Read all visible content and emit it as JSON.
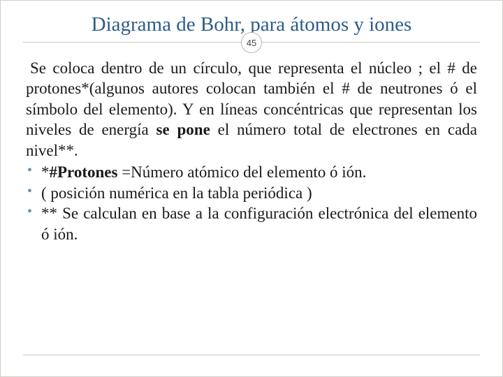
{
  "background_color": "#ffffff",
  "outer_background": "#f5f5f0",
  "title": {
    "text": "Diagrama de Bohr, para átomos y iones",
    "color": "#2d5c88",
    "fontsize": 29
  },
  "badge": {
    "number": "45",
    "border_color": "#b8b8b0",
    "bg": "#ffffff"
  },
  "hr_color": "#c8c8c0",
  "body": {
    "fontsize": 23,
    "color": "#1a1a1a",
    "p1a": " Se coloca  dentro de un círculo, que representa el núcleo ;  el # de protones*(algunos  autores colocan también el # de neutrones ó el símbolo del elemento). Y en líneas concéntricas que representan los niveles de energía ",
    "p1_bold": "se pone",
    "p1b": " el número total de electrones en cada nivel**.",
    "bullet_color": "#6b8fa8",
    "bullets": [
      {
        "pre": "*",
        "bold": "#Protones ",
        "post": "=Número atómico del elemento ó ión."
      },
      {
        "pre": "( posición numérica en la tabla periódica )",
        "bold": "",
        "post": ""
      },
      {
        "pre": "** Se calculan en base a la configuración electrónica del elemento ó ión.",
        "bold": "",
        "post": ""
      }
    ]
  }
}
